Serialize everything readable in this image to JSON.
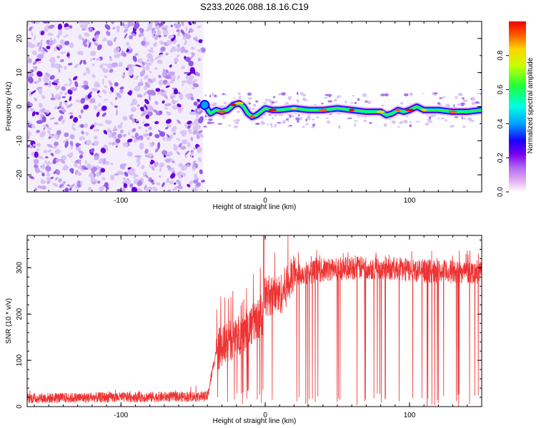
{
  "title": "S233.2026.088.18.16.C19",
  "colors": {
    "snr_line": "#ee3333",
    "scatter_dark": "#6a00e0",
    "scatter_light": "#d8c4f6",
    "colormap": [
      "#ffffff",
      "#e6b3f5",
      "#b46cf0",
      "#7b00ee",
      "#1a00ff",
      "#00a0ff",
      "#00ffe6",
      "#1eff3c",
      "#c8ff00",
      "#ffd200",
      "#ff5a00",
      "#f00000"
    ]
  },
  "chart_data": [
    {
      "type": "heatmap",
      "name": "spectrogram",
      "xlabel": "Height of straight line (km)",
      "ylabel": "Frequency (Hz)",
      "xlim": [
        -165,
        150
      ],
      "ylim": [
        -25,
        25
      ],
      "xticks": [
        -100,
        0,
        100
      ],
      "xtick_labels": [
        "-100",
        "0",
        "100"
      ],
      "yticks": [
        -20,
        -10,
        0,
        10,
        20
      ],
      "ytick_labels": [
        "-20",
        "-10",
        "0",
        "10",
        "20"
      ],
      "noise_region_x": [
        -165,
        -43
      ],
      "ridge": {
        "x": [
          -42,
          -38,
          -34,
          -30,
          -26,
          -22,
          -18,
          -15,
          -12,
          -9,
          -6,
          -3,
          0,
          5,
          10,
          20,
          30,
          40,
          50,
          60,
          70,
          80,
          84,
          88,
          92,
          96,
          100,
          105,
          110,
          120,
          130,
          140,
          150
        ],
        "freq": [
          0.5,
          -2.0,
          -1.0,
          -1.5,
          -1.0,
          0.5,
          1.0,
          0.0,
          -2.0,
          -3.0,
          -2.5,
          -1.5,
          -0.5,
          -1.0,
          -1.0,
          -0.5,
          -1.0,
          -1.0,
          -0.5,
          -1.0,
          -1.5,
          -1.5,
          -2.5,
          -2.0,
          -1.0,
          -1.5,
          -1.0,
          0.0,
          -1.0,
          -1.0,
          -1.5,
          -1.5,
          -1.0
        ]
      },
      "colorbar": {
        "label": "Normalized spectral amplitude",
        "range": [
          0,
          1
        ],
        "ticks": [
          0,
          0.2,
          0.4,
          0.6,
          0.8
        ],
        "tick_labels": [
          "0.0",
          "0.2",
          "0.4",
          "0.6",
          "0.8"
        ]
      }
    },
    {
      "type": "line",
      "name": "snr",
      "xlabel": "Height of straight line (km)",
      "ylabel": "SNR (10 * v/v)",
      "xlim": [
        -165,
        150
      ],
      "ylim": [
        0,
        370
      ],
      "xticks": [
        -100,
        0,
        100
      ],
      "xtick_labels": [
        "-100",
        "0",
        "100"
      ],
      "yticks": [
        0,
        100,
        200,
        300
      ],
      "ytick_labels": [
        "0",
        "100",
        "200",
        "300"
      ],
      "series": [
        {
          "name": "SNR",
          "x": [
            -165,
            -40,
            -34,
            -30,
            -20,
            -10,
            -2,
            0,
            10,
            20,
            30,
            40,
            60,
            80,
            100,
            120,
            150
          ],
          "values": [
            18,
            22,
            120,
            130,
            150,
            175,
            200,
            240,
            240,
            285,
            290,
            295,
            300,
            300,
            295,
            292,
            290
          ]
        }
      ]
    }
  ]
}
